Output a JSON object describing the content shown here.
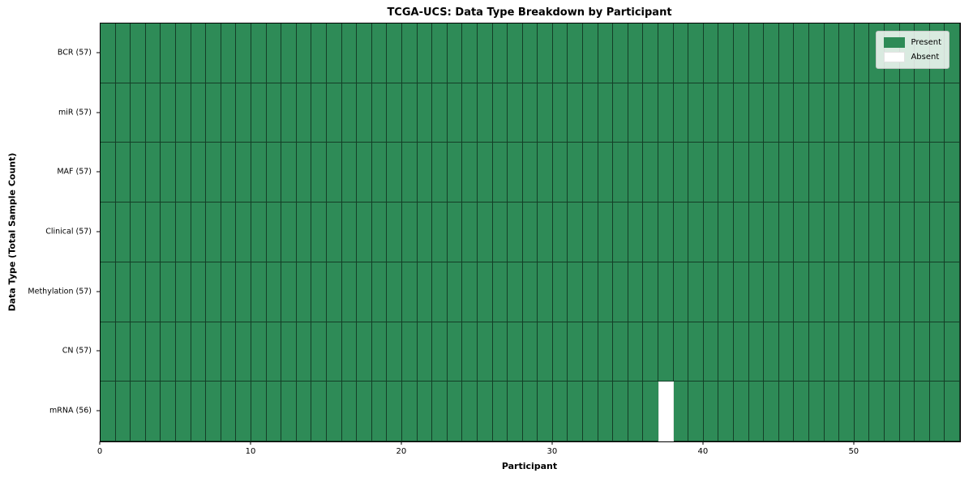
{
  "chart_data": {
    "type": "heatmap",
    "title": "TCGA-UCS: Data Type Breakdown by Participant",
    "xlabel": "Participant",
    "ylabel": "Data Type (Total Sample Count)",
    "n_participants": 57,
    "x_range": [
      0,
      57
    ],
    "x_ticks": [
      0,
      10,
      20,
      30,
      40,
      50
    ],
    "grid": "cell-edges",
    "rows": [
      {
        "name": "BCR",
        "count": 57,
        "display": "BCR (57)",
        "absent_participants": []
      },
      {
        "name": "miR",
        "count": 57,
        "display": "miR (57)",
        "absent_participants": []
      },
      {
        "name": "MAF",
        "count": 57,
        "display": "MAF (57)",
        "absent_participants": []
      },
      {
        "name": "Clinical",
        "count": 57,
        "display": "Clinical (57)",
        "absent_participants": []
      },
      {
        "name": "Methylation",
        "count": 57,
        "display": "Methylation (57)",
        "absent_participants": []
      },
      {
        "name": "CN",
        "count": 57,
        "display": "CN (57)",
        "absent_participants": []
      },
      {
        "name": "mRNA",
        "count": 56,
        "display": "mRNA (56)",
        "absent_participants": [
          37
        ]
      }
    ],
    "legend": {
      "position": "upper-right",
      "items": [
        {
          "label": "Present",
          "color": "#2e8b57"
        },
        {
          "label": "Absent",
          "color": "#ffffff"
        }
      ]
    },
    "colors": {
      "present": "#2e8b57",
      "absent": "#ffffff",
      "cell_edge": "rgba(0,0,0,0.55)",
      "plot_border": "#000000",
      "background": "#ffffff"
    }
  }
}
